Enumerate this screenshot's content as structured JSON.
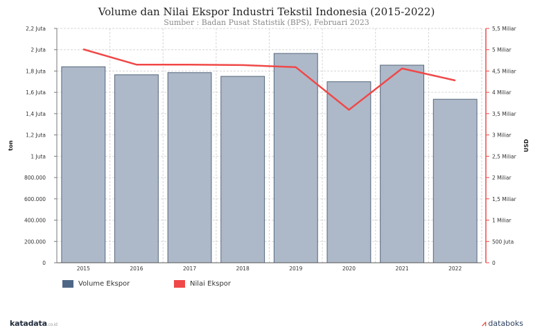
{
  "title": "Volume dan Nilai Ekspor Industri Tekstil Indonesia (2015-2022)",
  "subtitle": "Sumber : Badan Pusat Statistik (BPS), Februari 2023",
  "colors": {
    "bar": "#adb9c9",
    "bar_stroke": "#55657a",
    "line": "#f04848",
    "right_axis": "#f04848",
    "legend_bar": "#4f6787"
  },
  "chart_data": {
    "type": "bar",
    "categories": [
      "2015",
      "2016",
      "2017",
      "2018",
      "2019",
      "2020",
      "2021",
      "2022"
    ],
    "series": [
      {
        "name": "Volume Ekspor",
        "type": "bar",
        "axis": "left",
        "values": [
          1840000,
          1765000,
          1785000,
          1750000,
          1965000,
          1700000,
          1855000,
          1535000
        ]
      },
      {
        "name": "Nilai Ekspor",
        "type": "line",
        "axis": "right",
        "values": [
          5010000000,
          4650000000,
          4650000000,
          4640000000,
          4590000000,
          3590000000,
          4560000000,
          4280000000
        ]
      }
    ],
    "ylabel": "ton",
    "ylabel_right": "USD",
    "ylim": [
      0,
      2200000
    ],
    "ylim_right": [
      0,
      5500000000
    ],
    "yticks": [
      {
        "value": 0,
        "label": "0"
      },
      {
        "value": 200000,
        "label": "200.000"
      },
      {
        "value": 400000,
        "label": "400.000"
      },
      {
        "value": 600000,
        "label": "600.000"
      },
      {
        "value": 800000,
        "label": "800.000"
      },
      {
        "value": 1000000,
        "label": "1 Juta"
      },
      {
        "value": 1200000,
        "label": "1,2 Juta"
      },
      {
        "value": 1400000,
        "label": "1,4 Juta"
      },
      {
        "value": 1600000,
        "label": "1,6 Juta"
      },
      {
        "value": 1800000,
        "label": "1,8 Juta"
      },
      {
        "value": 2000000,
        "label": "2 Juta"
      },
      {
        "value": 2200000,
        "label": "2,2 Juta"
      }
    ],
    "yticks_right": [
      {
        "value": 0,
        "label": "0"
      },
      {
        "value": 500000000,
        "label": "500 Juta"
      },
      {
        "value": 1000000000,
        "label": "1 Miliar"
      },
      {
        "value": 1500000000,
        "label": "1,5 Miliar"
      },
      {
        "value": 2000000000,
        "label": "2 Miliar"
      },
      {
        "value": 2500000000,
        "label": "2,5 Miliar"
      },
      {
        "value": 3000000000,
        "label": "3 Miliar"
      },
      {
        "value": 3500000000,
        "label": "3,5 Miliar"
      },
      {
        "value": 4000000000,
        "label": "4 Miliar"
      },
      {
        "value": 4500000000,
        "label": "4,5 Miliar"
      },
      {
        "value": 5000000000,
        "label": "5 Miliar"
      },
      {
        "value": 5500000000,
        "label": "5,5 Miliar"
      }
    ],
    "grid": true,
    "legend": "bottom-left"
  },
  "legend": {
    "items": [
      {
        "label": "Volume Ekspor"
      },
      {
        "label": "Nilai Ekspor"
      }
    ]
  },
  "branding": {
    "left": "katadata",
    "left_suffix": ".co.id",
    "right": "databoks"
  }
}
